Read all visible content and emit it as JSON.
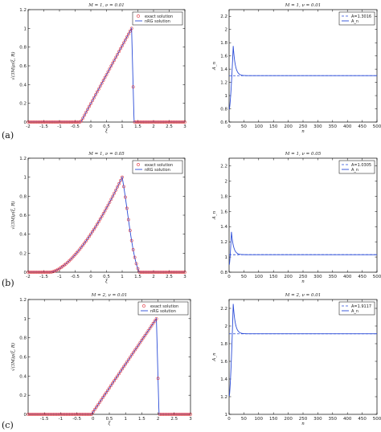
{
  "panel_labels": [
    "(a)",
    "(b)",
    "(c)"
  ],
  "colors": {
    "exact": "#e0303a",
    "nrg": "#2a4bd7",
    "ref": "#2a4bd7",
    "frame": "#000000"
  },
  "chart_data": [
    {
      "id": "a-left",
      "type": "scatter",
      "title": "M = 1, ν = 0.01",
      "xlabel": "ξ",
      "ylabel": "√(3M)ρ(ξ, R)",
      "xlim": [
        -2,
        3
      ],
      "ylim": [
        0,
        1.2
      ],
      "xticks": [
        "-2",
        "-1.5",
        "-1",
        "-0.5",
        "0",
        "0.5",
        "1",
        "1.5",
        "2",
        "2.5",
        "3"
      ],
      "yticks": [
        "0",
        "0.2",
        "0.4",
        "0.6",
        "0.8",
        "1",
        "1.2"
      ],
      "legend": [
        "exact solution",
        "nRG solution"
      ],
      "legend_position": "top-right",
      "profile": {
        "x0": -0.32,
        "xp": 1.3,
        "rise_exp": 1.0,
        "fall": "step"
      }
    },
    {
      "id": "a-right",
      "type": "line",
      "title": "M = 1, ν = 0.01",
      "xlabel": "n",
      "ylabel": "A_n",
      "xlim": [
        0,
        500
      ],
      "ylim": [
        0.6,
        2.3
      ],
      "xticks": [
        "0",
        "50",
        "100",
        "150",
        "200",
        "250",
        "300",
        "350",
        "400",
        "450",
        "500"
      ],
      "yticks": [
        "0.6",
        "0.8",
        "1",
        "1.2",
        "1.4",
        "1.6",
        "1.8",
        "2",
        "2.2"
      ],
      "legend": [
        "A=1.3016",
        "A_n"
      ],
      "legend_position": "top-right",
      "limit": 1.3016,
      "peak": 1.75,
      "peak_n": 14
    },
    {
      "id": "b-left",
      "type": "scatter",
      "title": "M = 1, ν = 0.05",
      "xlabel": "ξ",
      "ylabel": "√(3M)ρ(ξ, R)",
      "xlim": [
        -2,
        3
      ],
      "ylim": [
        0,
        1.2
      ],
      "xticks": [
        "-2",
        "-1.5",
        "-1",
        "-0.5",
        "0",
        "0.5",
        "1",
        "1.5",
        "2",
        "2.5",
        "3"
      ],
      "yticks": [
        "0",
        "0.2",
        "0.4",
        "0.6",
        "0.8",
        "1",
        "1.2"
      ],
      "legend": [
        "exact solution",
        "nRG solution"
      ],
      "legend_position": "top-right",
      "profile": {
        "x0": -1.3,
        "xp": 1.0,
        "rise_exp": 1.6,
        "fall": "smooth"
      }
    },
    {
      "id": "b-right",
      "type": "line",
      "title": "M = 1, ν = 0.05",
      "xlabel": "n",
      "ylabel": "A_n",
      "xlim": [
        0,
        500
      ],
      "ylim": [
        0.8,
        2.3
      ],
      "xticks": [
        "0",
        "50",
        "100",
        "150",
        "200",
        "250",
        "300",
        "350",
        "400",
        "450",
        "500"
      ],
      "yticks": [
        "0.8",
        "1",
        "1.2",
        "1.4",
        "1.6",
        "1.8",
        "2",
        "2.2"
      ],
      "legend": [
        "A=1.0305",
        "A_n"
      ],
      "legend_position": "top-right",
      "limit": 1.0305,
      "peak": 1.33,
      "peak_n": 8
    },
    {
      "id": "c-left",
      "type": "scatter",
      "title": "M = 2, ν = 0.01",
      "xlabel": "ξ",
      "ylabel": "√(3M)ρ(ξ, R)",
      "xlim": [
        -2,
        3
      ],
      "ylim": [
        0,
        1.2
      ],
      "xticks": [
        "-1.5",
        "-1",
        "-0.5",
        "0",
        "0.5",
        "1",
        "1.5",
        "2",
        "2.5",
        "3"
      ],
      "yticks": [
        "0",
        "0.2",
        "0.4",
        "0.6",
        "0.8",
        "1",
        "1.2"
      ],
      "legend": [
        "exact solution",
        "nRG solution"
      ],
      "legend_position": "top-right",
      "profile": {
        "x0": -0.05,
        "xp": 1.95,
        "rise_exp": 1.0,
        "fall": "step"
      }
    },
    {
      "id": "c-right",
      "type": "line",
      "title": "M = 2, ν = 0.01",
      "xlabel": "n",
      "ylabel": "A_n",
      "xlim": [
        0,
        500
      ],
      "ylim": [
        1,
        2.3
      ],
      "xticks": [
        "0",
        "50",
        "100",
        "150",
        "200",
        "250",
        "300",
        "350",
        "400",
        "450",
        "500"
      ],
      "yticks": [
        "1",
        "1.2",
        "1.4",
        "1.6",
        "1.8",
        "2",
        "2.2"
      ],
      "legend": [
        "A=1.9117",
        "A_n"
      ],
      "legend_position": "top-right",
      "limit": 1.9117,
      "peak": 2.25,
      "peak_n": 14
    }
  ]
}
